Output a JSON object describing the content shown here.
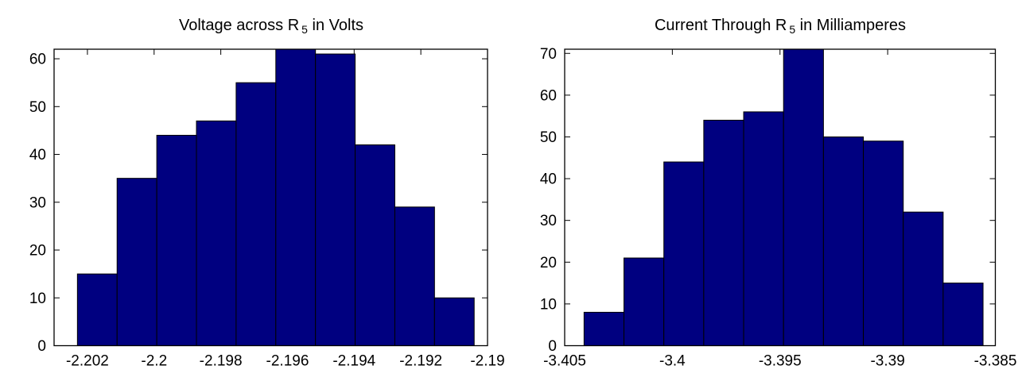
{
  "figure": {
    "background": "#ffffff",
    "frame_color": "#000000",
    "text_color": "#000000"
  },
  "chart_data": [
    {
      "type": "bar",
      "subtype": "histogram",
      "title": "Voltage across R5 in Volts",
      "title_parts": {
        "pre": "Voltage across R",
        "sub": "5",
        "post": " in Volts"
      },
      "xlabel": "",
      "ylabel": "",
      "xlim": [
        -2.203,
        -2.19
      ],
      "ylim": [
        0,
        62
      ],
      "grid": false,
      "legend": false,
      "x_ticks": [
        {
          "v": -2.202,
          "label": "-2.202"
        },
        {
          "v": -2.2,
          "label": "-2.2"
        },
        {
          "v": -2.198,
          "label": "-2.198"
        },
        {
          "v": -2.196,
          "label": "-2.196"
        },
        {
          "v": -2.194,
          "label": "-2.194"
        },
        {
          "v": -2.192,
          "label": "-2.192"
        },
        {
          "v": -2.19,
          "label": "-2.19"
        }
      ],
      "y_ticks": [
        {
          "v": 0,
          "label": "0"
        },
        {
          "v": 10,
          "label": "10"
        },
        {
          "v": 20,
          "label": "20"
        },
        {
          "v": 30,
          "label": "30"
        },
        {
          "v": 40,
          "label": "40"
        },
        {
          "v": 50,
          "label": "50"
        },
        {
          "v": 60,
          "label": "60"
        }
      ],
      "bins": {
        "start": -2.2023,
        "width": 0.00119
      },
      "bin_centers": [
        -2.20171,
        -2.20052,
        -2.19933,
        -2.19814,
        -2.19695,
        -2.19576,
        -2.19457,
        -2.19338,
        -2.19219,
        -2.191
      ],
      "counts": [
        15,
        35,
        44,
        47,
        55,
        62,
        61,
        42,
        29,
        10
      ],
      "bar_color": "#000080",
      "bar_edge_color": "#000000"
    },
    {
      "type": "bar",
      "subtype": "histogram",
      "title": "Current Through R5 in Milliamperes",
      "title_parts": {
        "pre": "Current Through R",
        "sub": "5",
        "post": " in Milliamperes"
      },
      "xlabel": "",
      "ylabel": "",
      "xlim": [
        -3.405,
        -3.385
      ],
      "ylim": [
        0,
        71
      ],
      "grid": false,
      "legend": false,
      "x_ticks": [
        {
          "v": -3.405,
          "label": "-3.405"
        },
        {
          "v": -3.4,
          "label": "-3.4"
        },
        {
          "v": -3.395,
          "label": "-3.395"
        },
        {
          "v": -3.39,
          "label": "-3.39"
        },
        {
          "v": -3.385,
          "label": "-3.385"
        }
      ],
      "y_ticks": [
        {
          "v": 0,
          "label": "0"
        },
        {
          "v": 10,
          "label": "10"
        },
        {
          "v": 20,
          "label": "20"
        },
        {
          "v": 30,
          "label": "30"
        },
        {
          "v": 40,
          "label": "40"
        },
        {
          "v": 50,
          "label": "50"
        },
        {
          "v": 60,
          "label": "60"
        },
        {
          "v": 70,
          "label": "70"
        }
      ],
      "bins": {
        "start": -3.4041,
        "width": 0.001853
      },
      "bin_centers": [
        -3.40317,
        -3.40132,
        -3.39947,
        -3.39761,
        -3.39576,
        -3.39391,
        -3.39205,
        -3.3902,
        -3.38835,
        -3.38649
      ],
      "counts": [
        8,
        21,
        44,
        54,
        56,
        71,
        50,
        49,
        32,
        15
      ],
      "bar_color": "#000080",
      "bar_edge_color": "#000000"
    }
  ]
}
